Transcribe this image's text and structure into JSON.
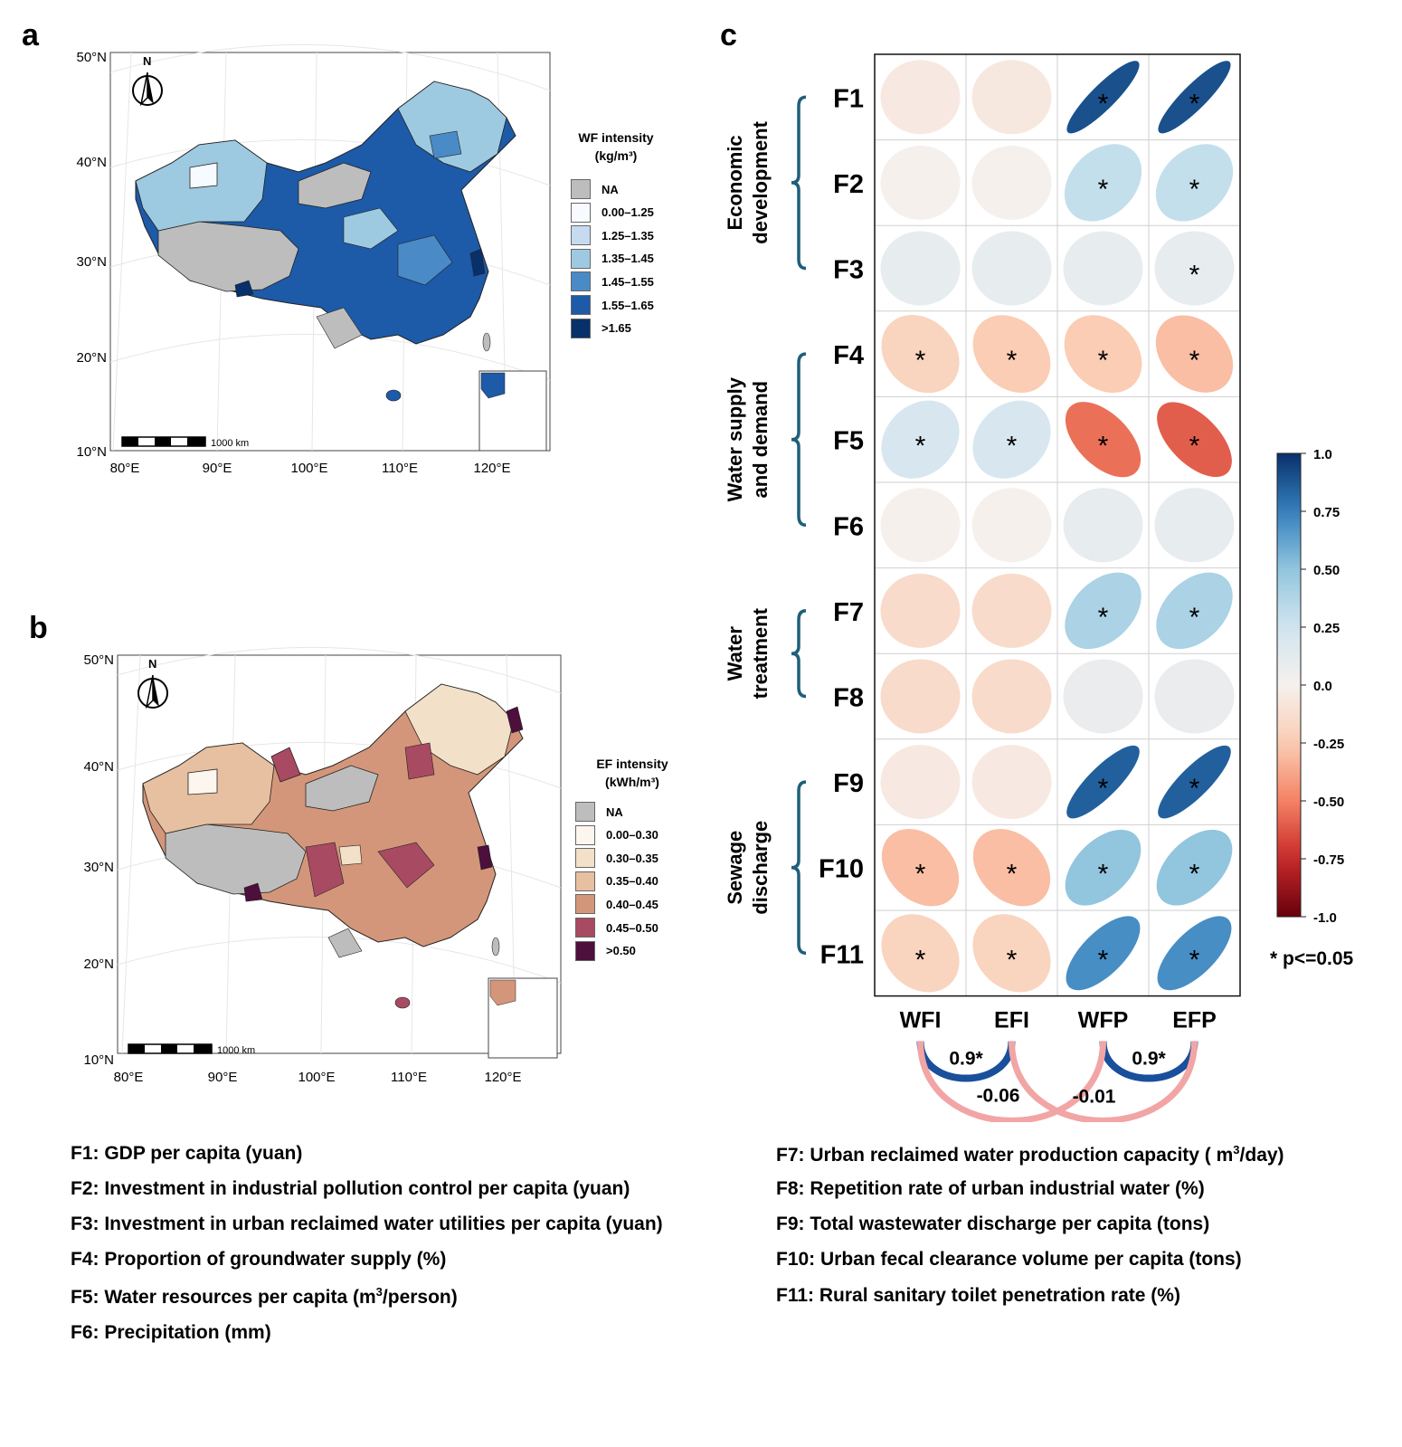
{
  "panel_a": {
    "letter": "a",
    "lat_labels": [
      "50°N",
      "40°N",
      "30°N",
      "20°N",
      "10°N"
    ],
    "lon_labels": [
      "80°E",
      "90°E",
      "100°E",
      "110°E",
      "120°E"
    ],
    "north": "N",
    "scale_label": "1000 km",
    "legend": {
      "title_line1": "WF intensity",
      "title_line2": "(kg/m³)",
      "items": [
        {
          "label": "NA",
          "color": "#bdbdbd"
        },
        {
          "label": "0.00–1.25",
          "color": "#f7fbff"
        },
        {
          "label": "1.25–1.35",
          "color": "#c6dbef"
        },
        {
          "label": "1.35–1.45",
          "color": "#9ecae1"
        },
        {
          "label": "1.45–1.55",
          "color": "#4a8ac7"
        },
        {
          "label": "1.55–1.65",
          "color": "#1d5aa8"
        },
        {
          "label": ">1.65",
          "color": "#08306b"
        }
      ]
    }
  },
  "panel_b": {
    "letter": "b",
    "lat_labels": [
      "50°N",
      "40°N",
      "30°N",
      "20°N",
      "10°N"
    ],
    "lon_labels": [
      "80°E",
      "90°E",
      "100°E",
      "110°E",
      "120°E"
    ],
    "north": "N",
    "scale_label": "1000 km",
    "legend": {
      "title_line1": "EF intensity",
      "title_line2": "(kWh/m³)",
      "items": [
        {
          "label": "NA",
          "color": "#bdbdbd"
        },
        {
          "label": "0.00–0.30",
          "color": "#fdf6ee"
        },
        {
          "label": "0.30–0.35",
          "color": "#f2e0c9"
        },
        {
          "label": "0.35–0.40",
          "color": "#e6c0a0"
        },
        {
          "label": "0.40–0.45",
          "color": "#d4967a"
        },
        {
          "label": "0.45–0.50",
          "color": "#a84a62"
        },
        {
          "label": ">0.50",
          "color": "#4d0f3c"
        }
      ]
    }
  },
  "chart_data": {
    "type": "heatmap",
    "subtype": "correlation-ellipse",
    "panel_letter": "c",
    "columns": [
      "WFI",
      "EFI",
      "WFP",
      "EFP"
    ],
    "rows": [
      "F1",
      "F2",
      "F3",
      "F4",
      "F5",
      "F6",
      "F7",
      "F8",
      "F9",
      "F10",
      "F11"
    ],
    "values": [
      [
        -0.05,
        -0.06,
        0.9,
        0.9
      ],
      [
        0.0,
        0.0,
        0.3,
        0.3
      ],
      [
        0.1,
        0.1,
        0.1,
        0.1
      ],
      [
        -0.2,
        -0.25,
        -0.25,
        -0.3
      ],
      [
        0.2,
        0.2,
        -0.55,
        -0.6
      ],
      [
        0.0,
        0.0,
        0.1,
        0.1
      ],
      [
        -0.15,
        -0.15,
        0.4,
        0.4
      ],
      [
        -0.15,
        -0.15,
        0.08,
        0.08
      ],
      [
        -0.05,
        -0.05,
        0.85,
        0.85
      ],
      [
        -0.3,
        -0.3,
        0.5,
        0.5
      ],
      [
        -0.2,
        -0.2,
        0.7,
        0.7
      ]
    ],
    "significant": [
      [
        false,
        false,
        true,
        true
      ],
      [
        false,
        false,
        true,
        true
      ],
      [
        false,
        false,
        false,
        true
      ],
      [
        true,
        true,
        true,
        true
      ],
      [
        true,
        true,
        true,
        true
      ],
      [
        false,
        false,
        false,
        false
      ],
      [
        false,
        false,
        true,
        true
      ],
      [
        false,
        false,
        false,
        false
      ],
      [
        false,
        false,
        true,
        true
      ],
      [
        true,
        true,
        true,
        true
      ],
      [
        true,
        true,
        true,
        true
      ]
    ],
    "star": "*",
    "groups": [
      {
        "line1": "Economic",
        "line2": "development",
        "from": 0,
        "to": 2
      },
      {
        "line1": "Water supply",
        "line2": "and demand",
        "from": 3,
        "to": 5
      },
      {
        "line1": "Water",
        "line2": "treatment",
        "from": 6,
        "to": 7
      },
      {
        "line1": "Sewage",
        "line2": "discharge",
        "from": 8,
        "to": 10
      }
    ],
    "colorbar": {
      "ticks": [
        "1.0",
        "0.75",
        "0.50",
        "0.25",
        "0.0",
        "-0.25",
        "-0.50",
        "-0.75",
        "-1.0"
      ],
      "range": [
        -1,
        1
      ]
    },
    "significance_note": "* p<=0.05",
    "pairs": [
      {
        "from": "WFI",
        "to": "EFI",
        "label": "0.9*",
        "value": 0.9,
        "color": "#1a4f9c"
      },
      {
        "from": "WFP",
        "to": "EFP",
        "label": "0.9*",
        "value": 0.9,
        "color": "#1a4f9c"
      },
      {
        "from": "WFI",
        "to": "WFP",
        "label": "-0.06",
        "value": -0.06,
        "color": "#f2a5a5"
      },
      {
        "from": "EFI",
        "to": "EFP",
        "label": "-0.01",
        "value": -0.01,
        "color": "#f2a5a5"
      }
    ]
  },
  "footnotes": {
    "left": [
      {
        "text": "F1: GDP per capita (yuan)"
      },
      {
        "text": "F2: Investment in industrial pollution control per capita (yuan)"
      },
      {
        "text": "F3: Investment in urban reclaimed water utilities per capita (yuan)"
      },
      {
        "text": "F4: Proportion of groundwater supply (%)"
      },
      {
        "pre": "F5: Water resources per capita (m",
        "sup": "3",
        "post": "/person)"
      },
      {
        "text": "F6: Precipitation (mm)"
      }
    ],
    "right": [
      {
        "pre": "F7: Urban reclaimed water production capacity ( m",
        "sup": "3",
        "post": "/day)"
      },
      {
        "text": "F8: Repetition rate of urban industrial water (%)"
      },
      {
        "text": "F9: Total wastewater discharge per capita (tons)"
      },
      {
        "text": "F10: Urban fecal clearance volume per capita (tons)"
      },
      {
        "text": "F11: Rural sanitary toilet penetration rate (%)"
      }
    ]
  }
}
